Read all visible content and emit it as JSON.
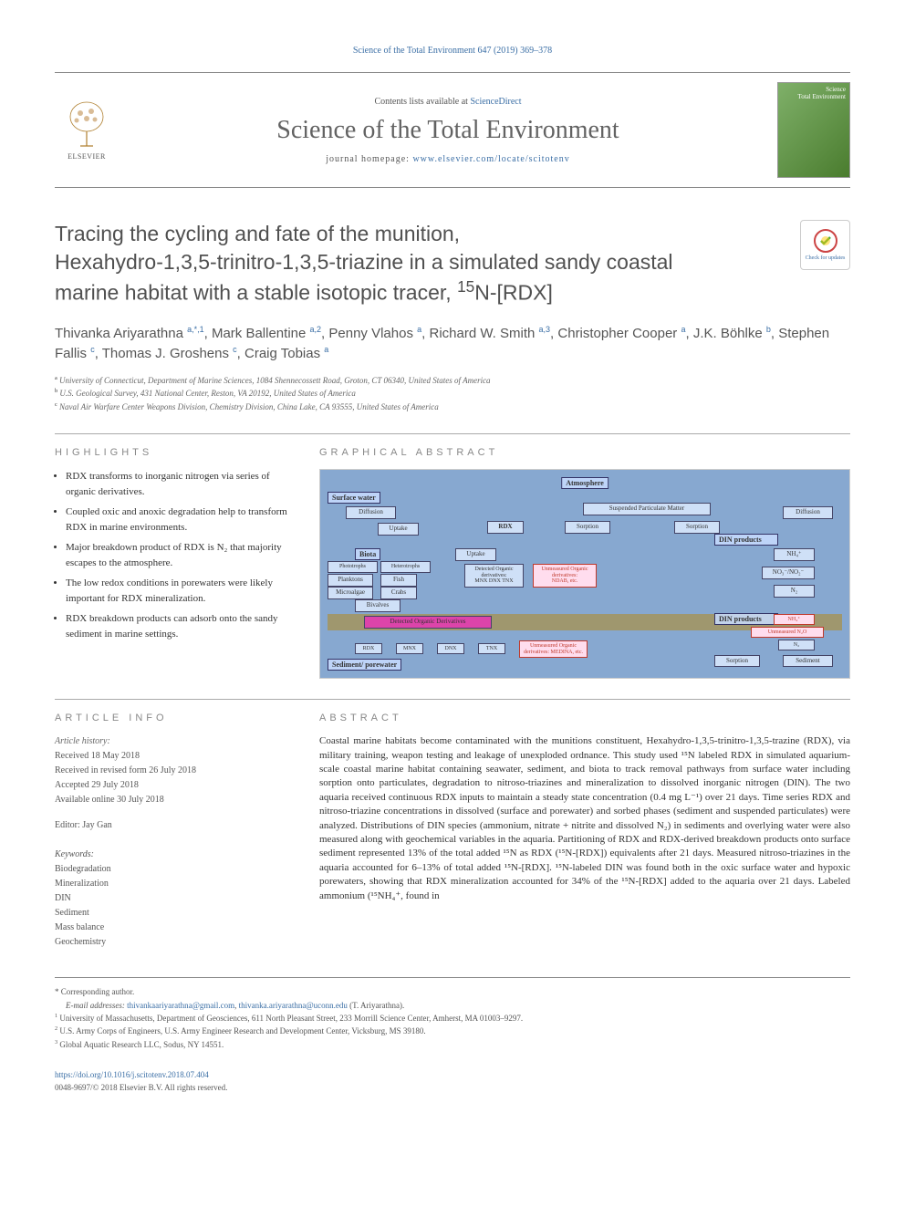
{
  "top_link": "Science of the Total Environment 647 (2019) 369–378",
  "header": {
    "contents_prefix": "Contents lists available at ",
    "contents_link": "ScienceDirect",
    "journal_name": "Science of the Total Environment",
    "homepage_prefix": "journal homepage: ",
    "homepage_link": "www.elsevier.com/locate/scitotenv",
    "publisher": "ELSEVIER",
    "cover_label_line1": "Science",
    "cover_label_line2": "Total Environment"
  },
  "check_updates": "Check for updates",
  "title": {
    "line1": "Tracing the cycling and fate of the munition,",
    "line2": "Hexahydro-1,3,5-trinitro-1,3,5-triazine in a simulated sandy coastal",
    "line3_pre": "marine habitat with a stable isotopic tracer, ",
    "line3_sup": "15",
    "line3_post": "N-[RDX]"
  },
  "authors": [
    {
      "name": "Thivanka Ariyarathna",
      "sup": "a,*,1"
    },
    {
      "name": "Mark Ballentine",
      "sup": "a,2"
    },
    {
      "name": "Penny Vlahos",
      "sup": "a"
    },
    {
      "name": "Richard W. Smith",
      "sup": "a,3"
    },
    {
      "name": "Christopher Cooper",
      "sup": "a"
    },
    {
      "name": "J.K. Böhlke",
      "sup": "b"
    },
    {
      "name": "Stephen Fallis",
      "sup": "c"
    },
    {
      "name": "Thomas J. Groshens",
      "sup": "c"
    },
    {
      "name": "Craig Tobias",
      "sup": "a"
    }
  ],
  "affiliations": [
    {
      "key": "a",
      "text": "University of Connecticut, Department of Marine Sciences, 1084 Shennecossett Road, Groton, CT 06340, United States of America"
    },
    {
      "key": "b",
      "text": "U.S. Geological Survey, 431 National Center, Reston, VA 20192, United States of America"
    },
    {
      "key": "c",
      "text": "Naval Air Warfare Center Weapons Division, Chemistry Division, China Lake, CA 93555, United States of America"
    }
  ],
  "sections": {
    "highlights": "HIGHLIGHTS",
    "graphical": "GRAPHICAL ABSTRACT",
    "article_info": "ARTICLE INFO",
    "abstract": "ABSTRACT"
  },
  "highlights": [
    "RDX transforms to inorganic nitrogen via series of organic derivatives.",
    "Coupled oxic and anoxic degradation help to transform RDX in marine environments.",
    "Major breakdown product of RDX is N₂ that majority escapes to the atmosphere.",
    "The low redox conditions in porewaters were likely important for RDX mineralization.",
    "RDX breakdown products can adsorb onto the sandy sediment in marine settings."
  ],
  "graphical_abstract": {
    "atmosphere": "Atmosphere",
    "surface_water": "Surface water",
    "diffusion": "Diffusion",
    "uptake": "Uptake",
    "rdx": "RDX",
    "spm": "Suspended Particulate Matter",
    "sorption": "Sorption",
    "din_products": "DIN products",
    "nh4": "NH₄⁺",
    "no3": "NO₃⁻/NO₂⁻",
    "n2": "N₂",
    "biota": "Biota",
    "phototrophs": "Phototrophs",
    "heterotrophs": "Heterotrophs",
    "planktons": "Planktons",
    "fish": "Fish",
    "microalgae": "Microalgae",
    "crabs": "Crabs",
    "bivalves": "Bivalves",
    "detected_org": "Detected Organic derivatives:",
    "detected_list": "MNX DNX TNX",
    "unmeasured_org": "Unmeasured Organic derivatives:",
    "unmeasured_list": "NDAB, etc.",
    "sediment_pore": "Sediment/ porewater",
    "detected_org_der": "Detected Organic Derivatives",
    "mnx": "MNX",
    "dnx": "DNX",
    "tnx": "TNX",
    "unmeasured2": "Unmeasured Organic derivatives: MEDINA, etc.",
    "unmeasured_n2o": "Unmeasured N₂O",
    "sediment": "Sediment"
  },
  "article_info": {
    "history_label": "Article history:",
    "received": "Received 18 May 2018",
    "revised": "Received in revised form 26 July 2018",
    "accepted": "Accepted 29 July 2018",
    "online": "Available online 30 July 2018",
    "editor_label": "Editor: ",
    "editor": "Jay Gan",
    "keywords_label": "Keywords:",
    "keywords": [
      "Biodegradation",
      "Mineralization",
      "DIN",
      "Sediment",
      "Mass balance",
      "Geochemistry"
    ]
  },
  "abstract": "Coastal marine habitats become contaminated with the munitions constituent, Hexahydro-1,3,5-trinitro-1,3,5-trazine (RDX), via military training, weapon testing and leakage of unexploded ordnance. This study used ¹⁵N labeled RDX in simulated aquarium-scale coastal marine habitat containing seawater, sediment, and biota to track removal pathways from surface water including sorption onto particulates, degradation to nitroso-triazines and mineralization to dissolved inorganic nitrogen (DIN). The two aquaria received continuous RDX inputs to maintain a steady state concentration (0.4 mg L⁻¹) over 21 days. Time series RDX and nitroso-triazine concentrations in dissolved (surface and porewater) and sorbed phases (sediment and suspended particulates) were analyzed. Distributions of DIN species (ammonium, nitrate + nitrite and dissolved N₂) in sediments and overlying water were also measured along with geochemical variables in the aquaria. Partitioning of RDX and RDX-derived breakdown products onto surface sediment represented 13% of the total added ¹⁵N as RDX (¹⁵N-[RDX]) equivalents after 21 days. Measured nitroso-triazines in the aquaria accounted for 6–13% of total added ¹⁵N-[RDX]. ¹⁵N-labeled DIN was found both in the oxic surface water and hypoxic porewaters, showing that RDX mineralization accounted for 34% of the ¹⁵N-[RDX] added to the aquaria over 21 days. Labeled ammonium (¹⁵NH₄⁺, found in",
  "footnotes": {
    "corresponding": "Corresponding author.",
    "email_label": "E-mail addresses:",
    "emails": [
      "thivankaariyarathna@gmail.com",
      "thivanka.ariyarathna@uconn.edu"
    ],
    "email_author": "(T. Ariyarathna).",
    "notes": [
      {
        "key": "1",
        "text": "University of Massachusetts, Department of Geosciences, 611 North Pleasant Street, 233 Morrill Science Center, Amherst, MA 01003–9297."
      },
      {
        "key": "2",
        "text": "U.S. Army Corps of Engineers, U.S. Army Engineer Research and Development Center, Vicksburg, MS 39180."
      },
      {
        "key": "3",
        "text": "Global Aquatic Research LLC, Sodus, NY 14551."
      }
    ]
  },
  "footer": {
    "doi": "https://doi.org/10.1016/j.scitotenv.2018.07.404",
    "issn": "0048-9697/© 2018 Elsevier B.V. All rights reserved."
  },
  "colors": {
    "link": "#3a6ea5",
    "heading": "#888888",
    "text": "#333333",
    "border": "#888888"
  }
}
